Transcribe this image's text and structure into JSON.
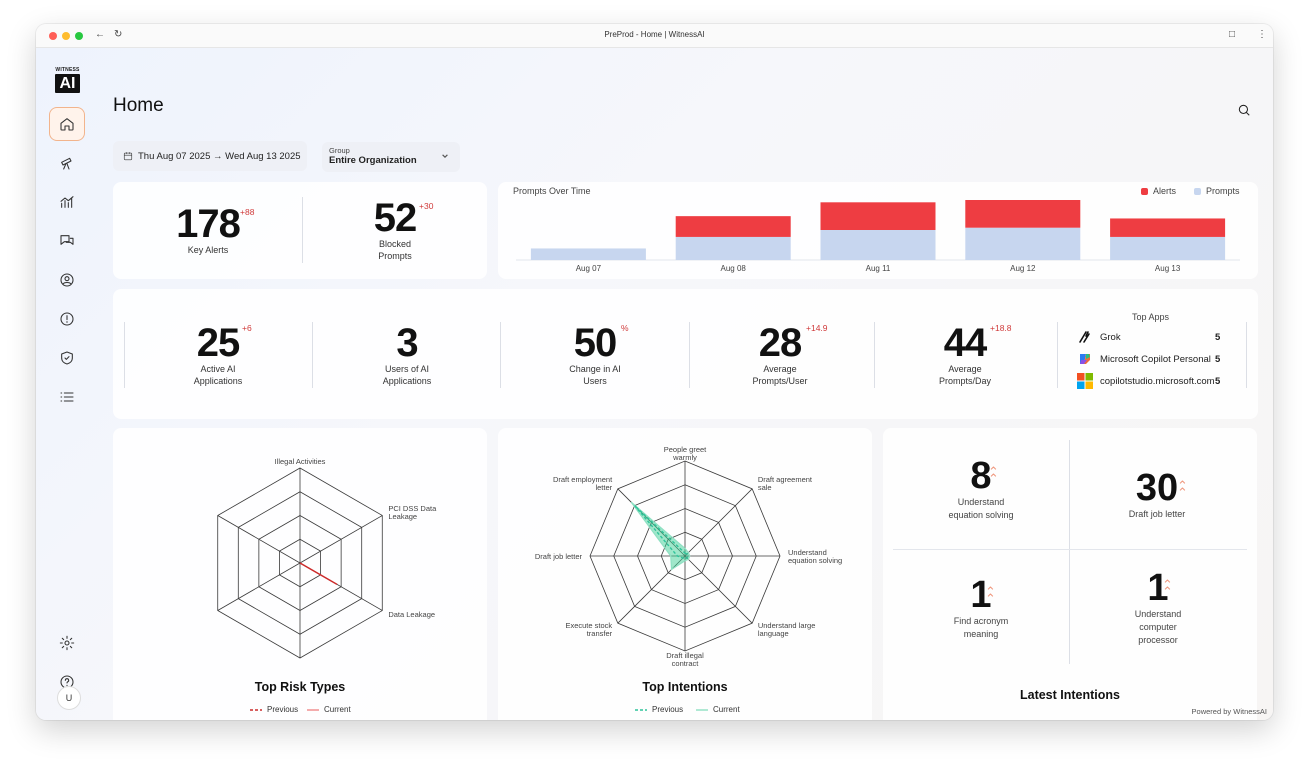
{
  "browser": {
    "title": "PreProd - Home | WitnessAI"
  },
  "logo": {
    "top": "WITNESS",
    "mark": "AI"
  },
  "sidebar": {
    "items": [
      {
        "name": "home-icon",
        "active": true
      },
      {
        "name": "telescope-icon",
        "active": false
      },
      {
        "name": "analytics-icon",
        "active": false
      },
      {
        "name": "chat-icon",
        "active": false
      },
      {
        "name": "user-circle-icon",
        "active": false
      },
      {
        "name": "alert-icon",
        "active": false
      },
      {
        "name": "shield-icon",
        "active": false
      },
      {
        "name": "list-icon",
        "active": false
      }
    ],
    "bottom": [
      {
        "name": "gear-icon"
      },
      {
        "name": "help-icon"
      }
    ],
    "avatar": "U"
  },
  "page": {
    "title": "Home"
  },
  "filters": {
    "date_range": "Thu Aug 07 2025 → Wed Aug 13 2025",
    "group_label": "Group",
    "group_value": "Entire Organization"
  },
  "key_stats": [
    {
      "value": "178",
      "delta": "+88",
      "label": "Key Alerts"
    },
    {
      "value": "52",
      "delta": "+30",
      "label": "Blocked Prompts"
    }
  ],
  "chart_data": {
    "type": "bar",
    "title": "Prompts Over Time",
    "categories": [
      "Aug 07",
      "Aug 08",
      "Aug 11",
      "Aug 12",
      "Aug 13"
    ],
    "series": [
      {
        "name": "Prompts",
        "color": "#c7d6ef",
        "values": [
          5,
          10,
          13,
          14,
          10
        ]
      },
      {
        "name": "Alerts",
        "color": "#ee3d42",
        "values": [
          0,
          9,
          12,
          12,
          8
        ]
      }
    ],
    "ylim": [
      0,
      26
    ],
    "stacked": true
  },
  "app_stats": [
    {
      "value": "25",
      "delta": "+6",
      "label": "Active AI Applications"
    },
    {
      "value": "3",
      "delta": "",
      "label": "Users of AI Applications"
    },
    {
      "value": "50",
      "delta": "%",
      "label": "Change in AI Users"
    },
    {
      "value": "28",
      "delta": "+14.9",
      "label": "Average Prompts/User"
    },
    {
      "value": "44",
      "delta": "+18.8",
      "label": "Average Prompts/Day"
    }
  ],
  "top_apps": {
    "title": "Top Apps",
    "items": [
      {
        "name": "Grok",
        "count": "5"
      },
      {
        "name": "Microsoft Copilot Personal",
        "count": "5"
      },
      {
        "name": "copilotstudio.microsoft.com",
        "count": "5"
      }
    ]
  },
  "risk_radar": {
    "title": "Top Risk Types",
    "axes": [
      "Illegal Activities",
      "PCI DSS Data Leakage",
      "Data Leakage",
      "",
      "",
      ""
    ],
    "previous": [
      0,
      0,
      0.45,
      0,
      0,
      0
    ],
    "current": [
      0,
      0,
      0.4,
      0,
      0,
      0
    ],
    "legend_previous": "Previous",
    "legend_current": "Current"
  },
  "intent_radar": {
    "title": "Top Intentions",
    "axes": [
      "People greet warmly",
      "Draft agreement sale",
      "Understand equation solving",
      "Understand large language",
      "Draft illegal contract",
      "Execute stock transfer",
      "Draft job letter",
      "Draft employment letter"
    ],
    "previous": [
      0.03,
      0.03,
      0.03,
      0.03,
      0.03,
      0.03,
      0.08,
      0.75
    ],
    "current": [
      0.08,
      0.05,
      0.05,
      0.05,
      0.05,
      0.2,
      0.15,
      0.8
    ],
    "legend_previous": "Previous",
    "legend_current": "Current"
  },
  "latest_intentions": {
    "title": "Latest Intentions",
    "items": [
      {
        "value": "8",
        "label": "Understand equation solving"
      },
      {
        "value": "30",
        "label": "Draft job letter"
      },
      {
        "value": "1",
        "label": "Find acronym meaning"
      },
      {
        "value": "1",
        "label": "Understand computer processor"
      }
    ]
  },
  "footer": {
    "powered": "Powered by WitnessAI"
  }
}
